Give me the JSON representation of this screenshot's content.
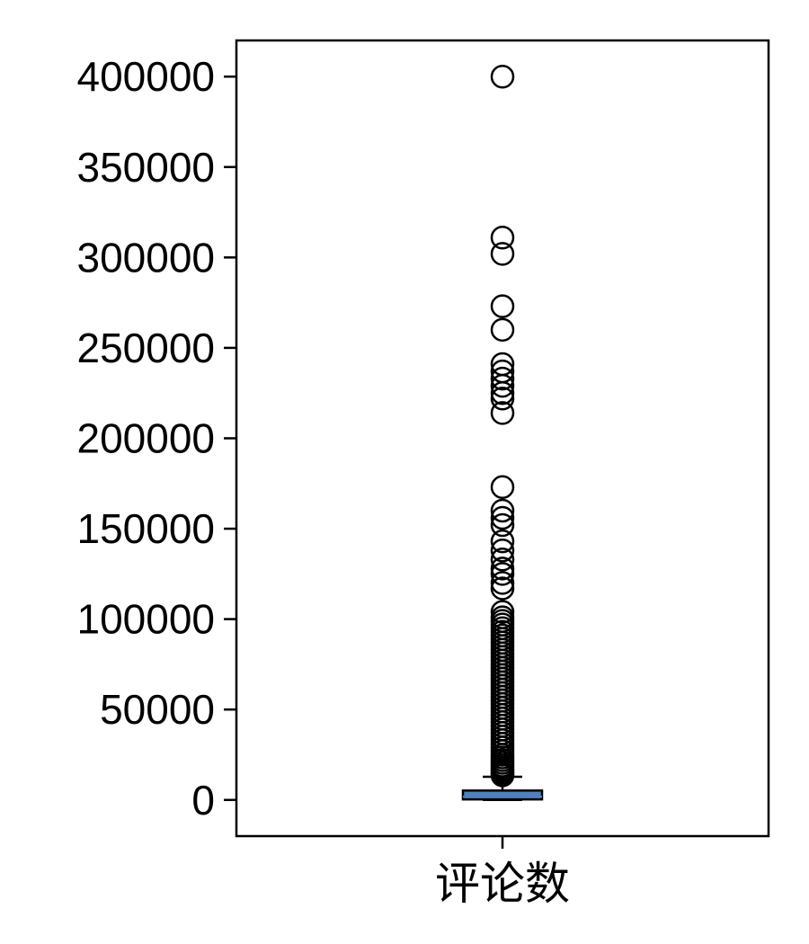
{
  "chart_data": {
    "type": "box",
    "title": "",
    "xlabel": "",
    "ylabel": "",
    "categories": [
      "评论数"
    ],
    "ylim": [
      -20000,
      420000
    ],
    "yticks": [
      0,
      50000,
      100000,
      150000,
      200000,
      250000,
      300000,
      350000,
      400000
    ],
    "ytick_labels": [
      "0",
      "50000",
      "100000",
      "150000",
      "200000",
      "250000",
      "300000",
      "350000",
      "400000"
    ],
    "grid": false,
    "legend": "none",
    "box": {
      "min": 0,
      "q1": 300,
      "median": 1800,
      "q3": 5200,
      "whisker_low": 0,
      "whisker_high": 12800
    },
    "outliers": [
      400000,
      311000,
      302000,
      273000,
      260000,
      241000,
      237000,
      233000,
      229000,
      225000,
      222000,
      214000,
      173000,
      160000,
      156000,
      152000,
      143000,
      138000,
      133000,
      128000,
      125000,
      120000,
      117000,
      104000,
      101000,
      99000,
      97000,
      95000,
      93000,
      91000,
      89000,
      87000,
      85000,
      83000,
      81000,
      79000,
      77000,
      75000,
      73000,
      71000,
      69000,
      67000,
      65000,
      63000,
      61000,
      59000,
      57000,
      55000,
      53000,
      51000,
      49000,
      47000,
      45000,
      43000,
      41000,
      39000,
      37000,
      35000,
      33000,
      31000,
      29000,
      27000,
      25000,
      23500,
      22000,
      20500,
      19000,
      17800,
      16600,
      15500,
      14500,
      13600
    ],
    "colors": {
      "box_fill": "#4f81bd",
      "box_edge": "#000000",
      "median": "#4f81bd",
      "marker_edge": "#000000",
      "axes": "#000000"
    }
  }
}
